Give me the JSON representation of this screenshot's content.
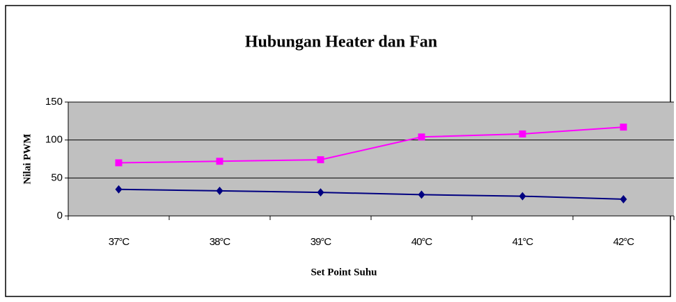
{
  "chart_data": {
    "type": "line",
    "title": "Hubungan Heater dan Fan",
    "x_label": "Set Point Suhu",
    "y_label": "Nilai PWM",
    "categories": [
      "37°C",
      "38°C",
      "39°C",
      "40°C",
      "41°C",
      "42°C"
    ],
    "series": [
      {
        "color": "#ff00ff",
        "marker": "square",
        "values": [
          70,
          72,
          74,
          104,
          108,
          117
        ]
      },
      {
        "color": "#000080",
        "marker": "diamond",
        "values": [
          35,
          33,
          31,
          28,
          26,
          22
        ]
      }
    ],
    "ylim": [
      0,
      150
    ],
    "yticks": [
      0,
      50,
      100,
      150
    ],
    "grid": true
  }
}
